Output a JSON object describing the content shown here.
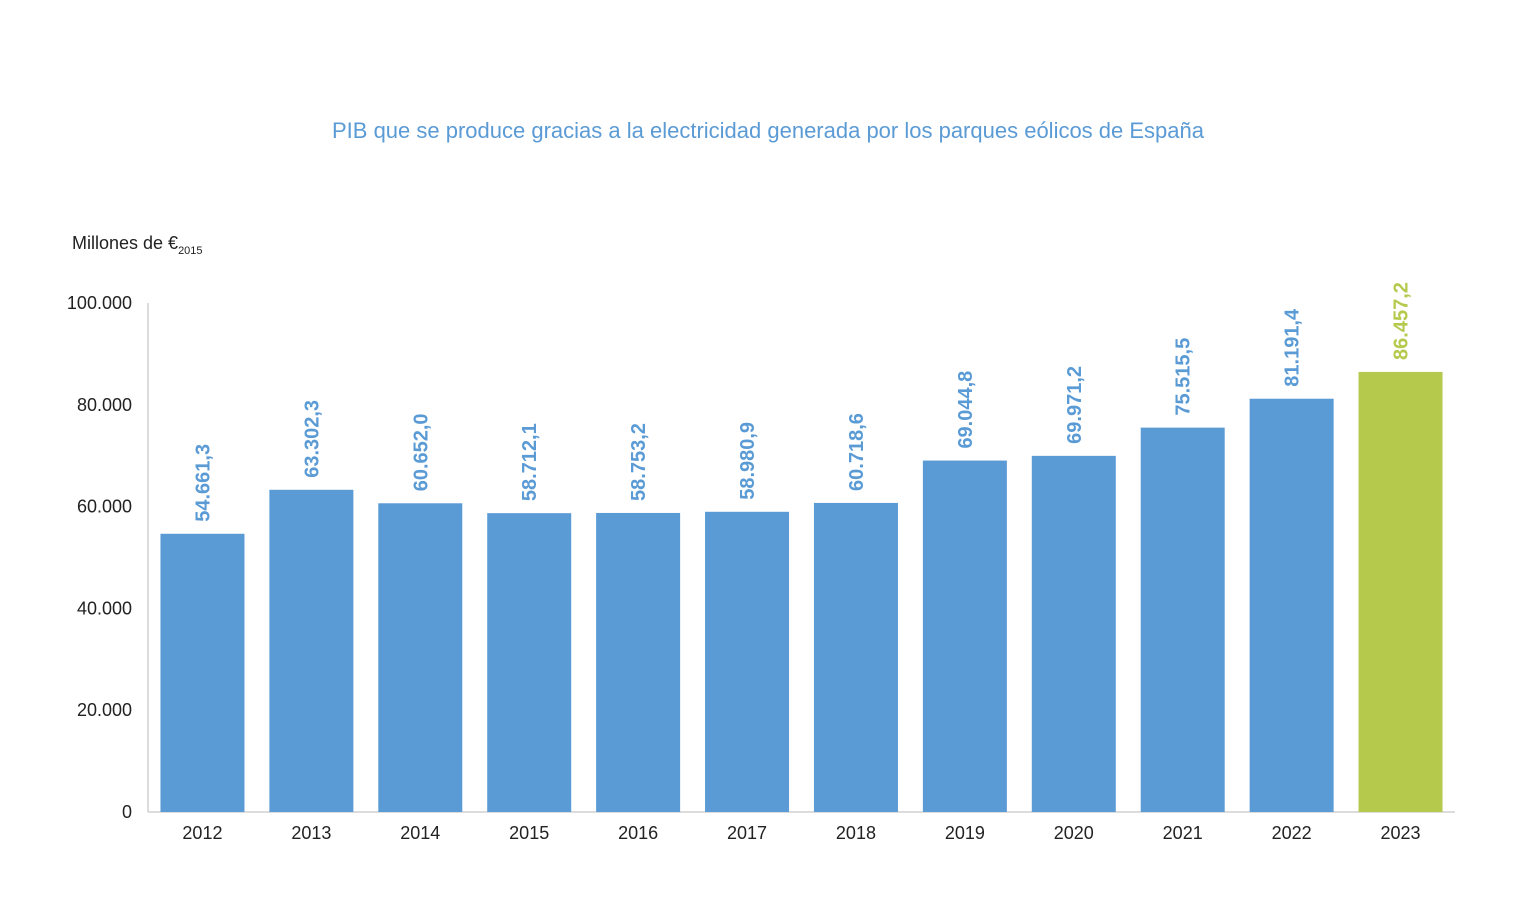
{
  "chart_data": {
    "type": "bar",
    "title": "PIB que se produce gracias a la electricidad generada por los parques eólicos de España",
    "ylabel": "Millones de €",
    "ylabel_sub": "2015",
    "xlabel": "",
    "ylim": [
      0,
      100000
    ],
    "yticks": [
      0,
      20000,
      40000,
      60000,
      80000,
      100000
    ],
    "ytick_labels": [
      "0",
      "20.000",
      "40.000",
      "60.000",
      "80.000",
      "100.000"
    ],
    "categories": [
      "2012",
      "2013",
      "2014",
      "2015",
      "2016",
      "2017",
      "2018",
      "2019",
      "2020",
      "2021",
      "2022",
      "2023"
    ],
    "values": [
      54661.3,
      63302.3,
      60652.0,
      58712.1,
      58753.2,
      58980.9,
      60718.6,
      69044.8,
      69971.2,
      75515.5,
      81191.4,
      86457.2
    ],
    "value_labels": [
      "54.661,3",
      "63.302,3",
      "60.652,0",
      "58.712,1",
      "58.753,2",
      "58.980,9",
      "60.718,6",
      "69.044,8",
      "69.971,2",
      "75.515,5",
      "81.191,4",
      "86.457,2"
    ],
    "colors": {
      "default": "#5b9bd5",
      "highlight": "#b5c94c",
      "title": "#5b9bd5",
      "axis": "#d0d0d0"
    },
    "highlight_index": 11,
    "grid": false,
    "legend": "none"
  }
}
